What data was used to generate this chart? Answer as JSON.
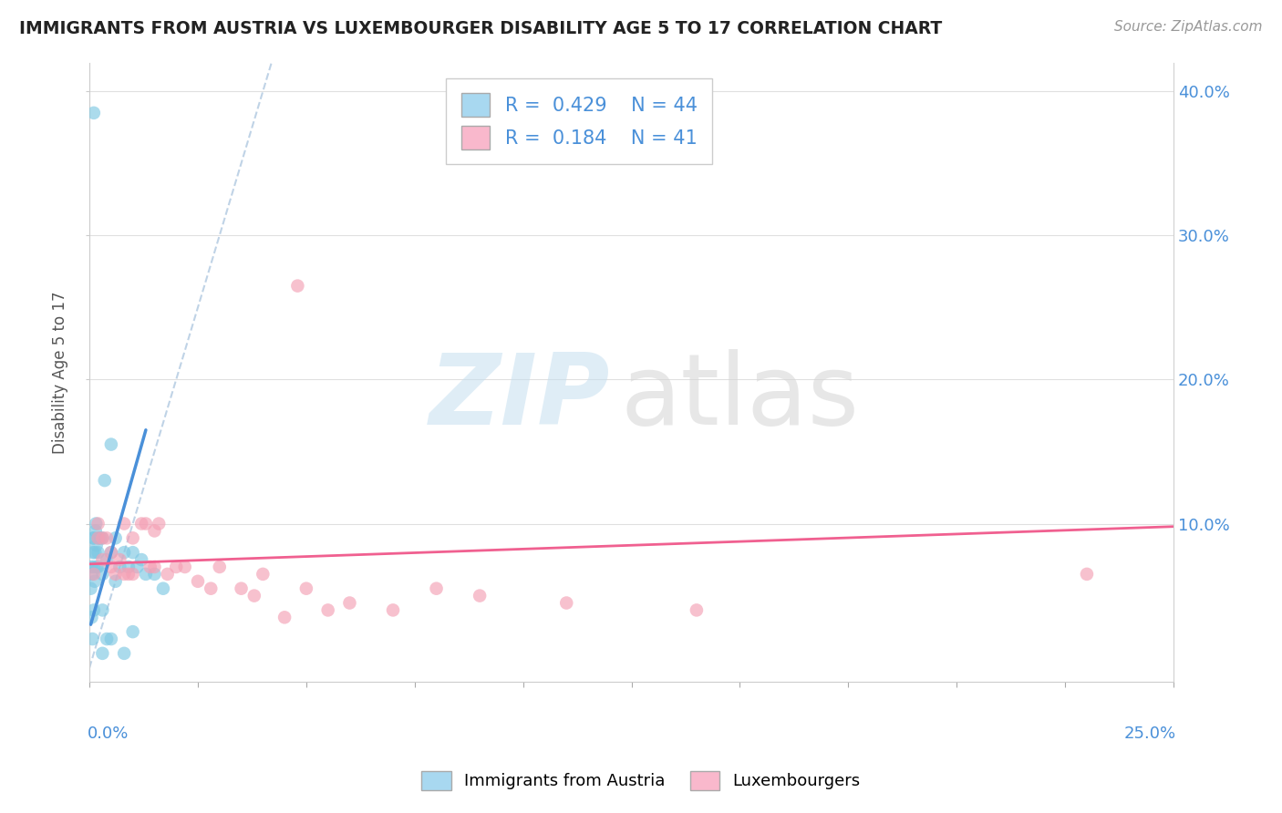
{
  "title": "IMMIGRANTS FROM AUSTRIA VS LUXEMBOURGER DISABILITY AGE 5 TO 17 CORRELATION CHART",
  "source": "Source: ZipAtlas.com",
  "ylabel": "Disability Age 5 to 17",
  "legend1_label": "Immigrants from Austria",
  "legend2_label": "Luxembourgers",
  "R1": 0.429,
  "N1": 44,
  "R2": 0.184,
  "N2": 41,
  "color_blue": "#7ec8e3",
  "color_pink": "#f4a0b5",
  "color_blue_line": "#4a90d9",
  "color_pink_line": "#f06090",
  "color_dash": "#b0c8e0",
  "xlim": [
    0.0,
    0.25
  ],
  "ylim": [
    -0.01,
    0.42
  ],
  "austria_x": [
    0.0003,
    0.0004,
    0.0005,
    0.0006,
    0.0007,
    0.0008,
    0.0009,
    0.001,
    0.001,
    0.001,
    0.0012,
    0.0013,
    0.0014,
    0.0015,
    0.0016,
    0.0017,
    0.002,
    0.002,
    0.002,
    0.0025,
    0.003,
    0.003,
    0.003,
    0.003,
    0.0035,
    0.004,
    0.004,
    0.005,
    0.005,
    0.005,
    0.006,
    0.006,
    0.007,
    0.008,
    0.008,
    0.009,
    0.01,
    0.01,
    0.011,
    0.012,
    0.013,
    0.015,
    0.017,
    0.001
  ],
  "austria_y": [
    0.055,
    0.07,
    0.035,
    0.065,
    0.02,
    0.08,
    0.09,
    0.04,
    0.07,
    0.09,
    0.06,
    0.08,
    0.095,
    0.1,
    0.085,
    0.07,
    0.08,
    0.09,
    0.07,
    0.09,
    0.01,
    0.04,
    0.065,
    0.09,
    0.13,
    0.02,
    0.075,
    0.02,
    0.08,
    0.155,
    0.06,
    0.09,
    0.07,
    0.01,
    0.08,
    0.07,
    0.025,
    0.08,
    0.07,
    0.075,
    0.065,
    0.065,
    0.055,
    0.385
  ],
  "lux_x": [
    0.001,
    0.002,
    0.002,
    0.003,
    0.003,
    0.004,
    0.005,
    0.005,
    0.006,
    0.007,
    0.008,
    0.008,
    0.009,
    0.01,
    0.01,
    0.012,
    0.013,
    0.014,
    0.015,
    0.015,
    0.016,
    0.018,
    0.02,
    0.022,
    0.025,
    0.028,
    0.03,
    0.035,
    0.038,
    0.04,
    0.045,
    0.05,
    0.055,
    0.06,
    0.07,
    0.08,
    0.09,
    0.11,
    0.14,
    0.23,
    0.048
  ],
  "lux_y": [
    0.065,
    0.09,
    0.1,
    0.075,
    0.09,
    0.09,
    0.07,
    0.08,
    0.065,
    0.075,
    0.065,
    0.1,
    0.065,
    0.065,
    0.09,
    0.1,
    0.1,
    0.07,
    0.07,
    0.095,
    0.1,
    0.065,
    0.07,
    0.07,
    0.06,
    0.055,
    0.07,
    0.055,
    0.05,
    0.065,
    0.035,
    0.055,
    0.04,
    0.045,
    0.04,
    0.055,
    0.05,
    0.045,
    0.04,
    0.065,
    0.265
  ],
  "austria_line_x": [
    0.0003,
    0.013
  ],
  "austria_line_y": [
    0.03,
    0.165
  ],
  "lux_line_x": [
    0.0,
    0.25
  ],
  "lux_line_y": [
    0.072,
    0.098
  ],
  "dash_line_x": [
    0.0,
    0.042
  ],
  "dash_line_y": [
    0.0,
    0.42
  ]
}
